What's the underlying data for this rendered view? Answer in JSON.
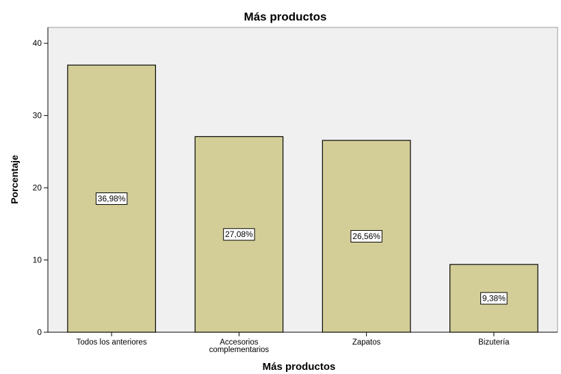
{
  "chart_data": {
    "type": "bar",
    "title": "Más productos",
    "xlabel": "Más productos",
    "ylabel": "Porcentaje",
    "categories": [
      [
        "Todos los anteriores"
      ],
      [
        "Accesorios",
        "complementarios"
      ],
      [
        "Zapatos"
      ],
      [
        "Bizutería"
      ]
    ],
    "values": [
      36.98,
      27.08,
      26.56,
      9.38
    ],
    "data_labels": [
      "36,98%",
      "27,08%",
      "26,56%",
      "9,38%"
    ],
    "yticks": [
      0,
      10,
      20,
      30,
      40
    ],
    "ylim": [
      0,
      42.2
    ],
    "grid": false,
    "legend": "none",
    "colors": {
      "plot_background": "#f0f0f0",
      "bar_fill": "#d3ce97",
      "bar_stroke": "#000000"
    }
  }
}
